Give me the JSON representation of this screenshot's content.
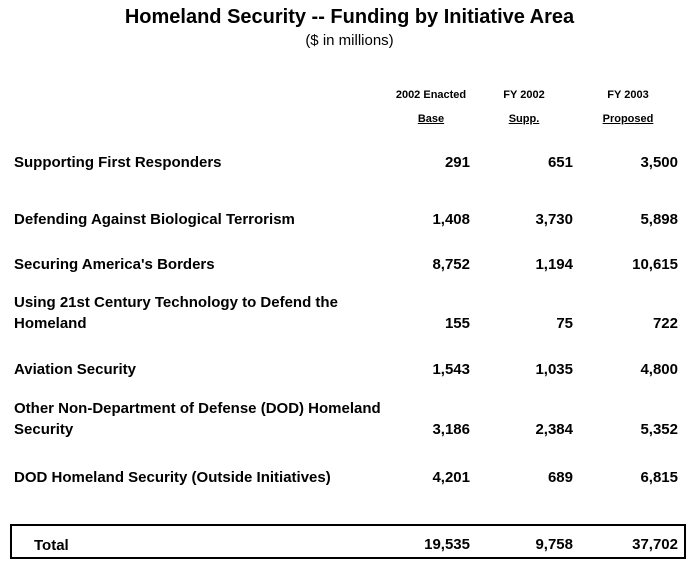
{
  "title": "Homeland Security -- Funding by Initiative Area",
  "subtitle": "($ in millions)",
  "columns": [
    {
      "line1": "2002 Enacted",
      "line2": "Base"
    },
    {
      "line1": "FY 2002",
      "line2": "Supp."
    },
    {
      "line1": "FY 2003",
      "line2": "Proposed"
    }
  ],
  "rows": [
    {
      "label": "Supporting First Responders",
      "values": [
        "291",
        "651",
        "3,500"
      ]
    },
    {
      "label": "Defending Against Biological Terrorism",
      "values": [
        "1,408",
        "3,730",
        "5,898"
      ]
    },
    {
      "label": "Securing America's Borders",
      "values": [
        "8,752",
        "1,194",
        "10,615"
      ]
    },
    {
      "label": "Using 21st Century Technology to Defend the Homeland",
      "values": [
        "155",
        "75",
        "722"
      ]
    },
    {
      "label": "Aviation Security",
      "values": [
        "1,543",
        "1,035",
        "4,800"
      ]
    },
    {
      "label": "Other Non-Department of Defense  (DOD) Homeland Security",
      "values": [
        "3,186",
        "2,384",
        "5,352"
      ]
    },
    {
      "label": "DOD Homeland Security (Outside Initiatives)",
      "values": [
        "4,201",
        "689",
        "6,815"
      ]
    }
  ],
  "total": {
    "label": "Total",
    "values": [
      "19,535",
      "9,758",
      "37,702"
    ]
  }
}
